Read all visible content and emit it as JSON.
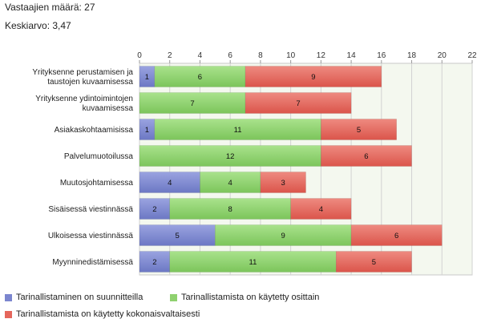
{
  "summary": {
    "respondents": "Vastaajien määrä: 27",
    "mean": "Keskiarvo: 3,47"
  },
  "chart_data": {
    "type": "bar",
    "orientation": "horizontal",
    "stacked": true,
    "categories": [
      "Yrityksenne perustamisen ja taustojen kuvaamisessa",
      "Yrityksenne ydintoimintojen kuvaamisessa",
      "Asiakaskohtaamisissa",
      "Palvelumuotoilussa",
      "Muutosjohtamisessa",
      "Sisäisessä viestinnässä",
      "Ulkoisessa viestinnässä",
      "Myynninedistämisessä"
    ],
    "category_lines": [
      [
        "Yrityksenne perustamisen ja",
        "taustojen kuvaamisessa"
      ],
      [
        "Yrityksenne ydintoimintojen",
        "kuvaamisessa"
      ],
      [
        "Asiakaskohtaamisissa"
      ],
      [
        "Palvelumuotoilussa"
      ],
      [
        "Muutosjohtamisessa"
      ],
      [
        "Sisäisessä viestinnässä"
      ],
      [
        "Ulkoisessa viestinnässä"
      ],
      [
        "Myynninedistämisessä"
      ]
    ],
    "series": [
      {
        "name": "Tarinallistaminen on suunnitteilla",
        "color": "#7b86cf",
        "values": [
          1,
          0,
          1,
          0,
          4,
          2,
          5,
          2
        ]
      },
      {
        "name": "Tarinallistamista on käytetty osittain",
        "color": "#8fd16f",
        "values": [
          6,
          7,
          11,
          12,
          4,
          8,
          9,
          11
        ]
      },
      {
        "name": "Tarinallistamista on käytetty kokonaisvaltaisesti",
        "color": "#e5665c",
        "values": [
          9,
          7,
          5,
          6,
          3,
          4,
          6,
          5
        ]
      }
    ],
    "xlim": [
      0,
      22
    ],
    "xticks": [
      0,
      2,
      4,
      6,
      8,
      10,
      12,
      14,
      16,
      18,
      20,
      22
    ],
    "grid": true,
    "legend_position": "bottom"
  }
}
